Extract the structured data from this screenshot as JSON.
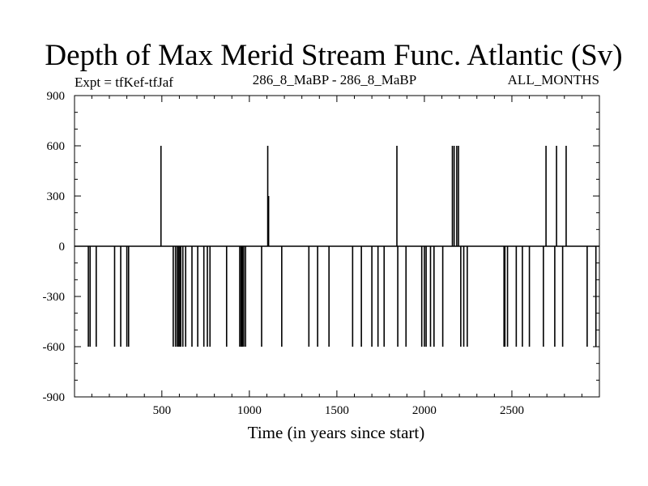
{
  "chart_data": {
    "type": "bar",
    "title": "Depth of Max Merid Stream Func. Atlantic (Sv)",
    "subtitle_left": "Expt = tfKef-tfJaf",
    "subtitle_center": "286_8_MaBP - 286_8_MaBP",
    "subtitle_right": "ALL_MONTHS",
    "xlabel": "Time (in years since start)",
    "ylabel": "",
    "xlim": [
      1,
      3000
    ],
    "ylim": [
      -900,
      900
    ],
    "x_ticks": [
      500,
      1000,
      1500,
      2000,
      2500
    ],
    "y_ticks": [
      -900,
      -600,
      -300,
      0,
      300,
      600,
      900
    ],
    "x_tick_labels": [
      "500",
      "1000",
      "1500",
      "2000",
      "2500"
    ],
    "y_tick_labels": [
      "-900",
      "-600",
      "-300",
      "0",
      "300",
      "600",
      "900"
    ],
    "grid": false,
    "series": [
      {
        "x": [
          80,
          90,
          125,
          230,
          265,
          300,
          310,
          495,
          565,
          578,
          588,
          596,
          603,
          608,
          620,
          636,
          672,
          705,
          740,
          760,
          775,
          870,
          945,
          953,
          960,
          968,
          978,
          1070,
          1105,
          1110,
          1185,
          1340,
          1390,
          1455,
          1590,
          1640,
          1700,
          1735,
          1770,
          1843,
          1848,
          1895,
          1985,
          2000,
          2010,
          2035,
          2055,
          2105,
          2160,
          2170,
          2185,
          2195,
          2208,
          2225,
          2245,
          2455,
          2460,
          2475,
          2525,
          2560,
          2600,
          2680,
          2695,
          2745,
          2755,
          2790,
          2810,
          2930,
          2980
        ],
        "values": [
          -600,
          -600,
          -600,
          -600,
          -600,
          -600,
          -600,
          600,
          -600,
          -600,
          -600,
          -600,
          -600,
          -600,
          -600,
          -600,
          -600,
          -600,
          -600,
          -600,
          -600,
          -600,
          -600,
          -600,
          -600,
          -600,
          -600,
          -600,
          600,
          300,
          -600,
          -600,
          -600,
          -600,
          -600,
          -600,
          -600,
          -600,
          -600,
          600,
          -600,
          -600,
          -600,
          -600,
          -600,
          -600,
          -600,
          -600,
          600,
          600,
          600,
          600,
          -600,
          -600,
          -600,
          -600,
          -600,
          -600,
          -600,
          -600,
          -600,
          -600,
          600,
          -600,
          600,
          -600,
          600,
          -600,
          -600
        ]
      }
    ]
  }
}
